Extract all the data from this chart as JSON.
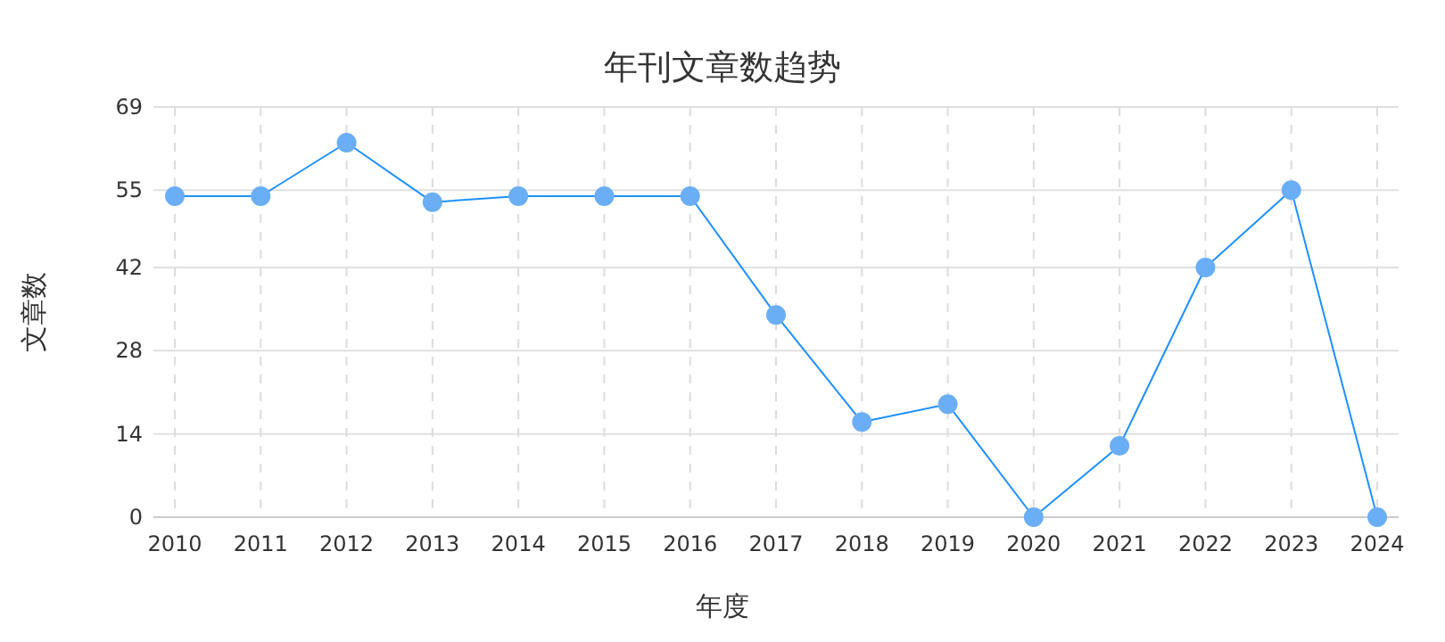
{
  "chart_data": {
    "type": "line",
    "title": "年刊文章数趋势",
    "xlabel": "年度",
    "ylabel": "文章数",
    "categories": [
      "2010",
      "2011",
      "2012",
      "2013",
      "2014",
      "2015",
      "2016",
      "2017",
      "2018",
      "2019",
      "2020",
      "2021",
      "2022",
      "2023",
      "2024"
    ],
    "series": [
      {
        "color": "#1e90ff",
        "values": [
          54,
          54,
          63,
          53,
          54,
          54,
          54,
          34,
          16,
          19,
          0,
          12,
          42,
          55,
          0
        ]
      }
    ],
    "ylim": [
      0,
      69
    ],
    "yticks": [
      0,
      14,
      28,
      42,
      55,
      69
    ],
    "grid": true,
    "marker": "circle",
    "line_style": "solid"
  }
}
